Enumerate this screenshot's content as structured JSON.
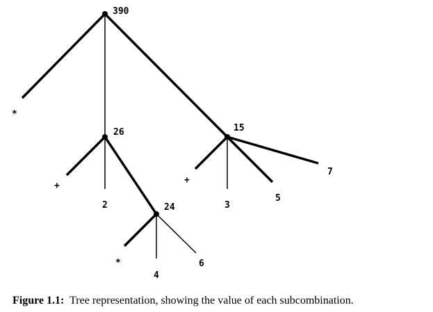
{
  "tree": {
    "root_value": "390",
    "root_operator": "*",
    "left_subtree": {
      "value": "26",
      "operator": "+",
      "operand": "2",
      "child": {
        "value": "24",
        "operator": "*",
        "operands": [
          "4",
          "6"
        ]
      }
    },
    "right_subtree": {
      "value": "15",
      "operator": "+",
      "operands": [
        "3",
        "5",
        "7"
      ]
    }
  },
  "caption": {
    "label": "Figure 1.1:",
    "text": "Tree representation, showing the value of each subcombination."
  }
}
